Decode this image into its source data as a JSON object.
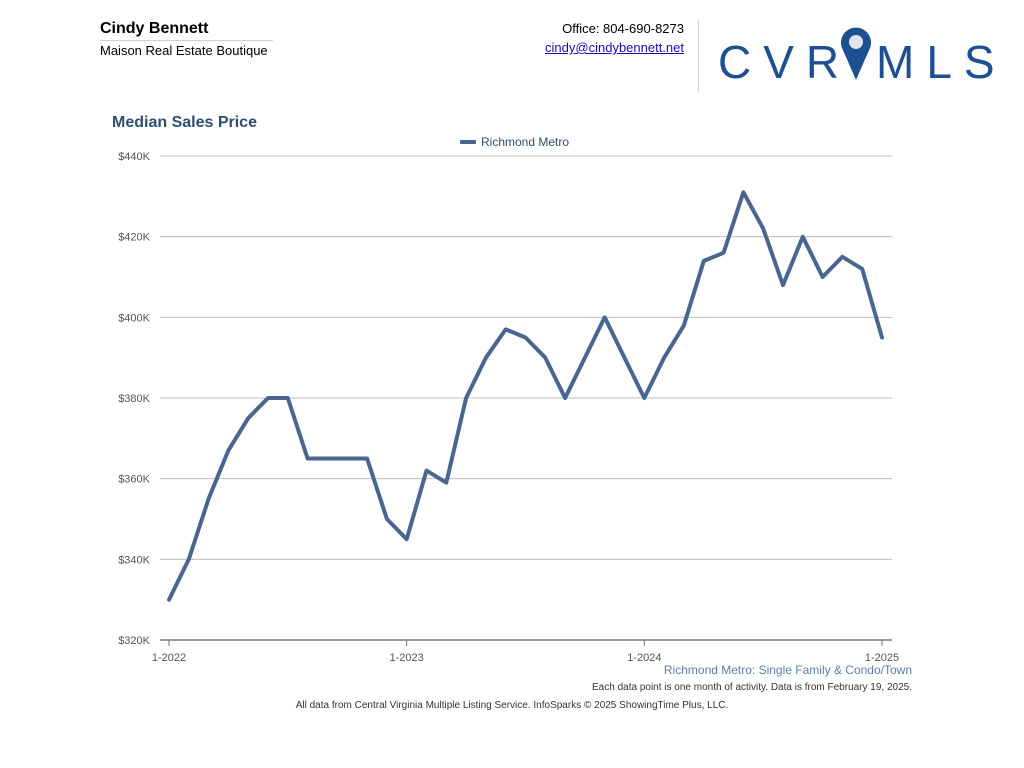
{
  "header": {
    "agent_name": "Cindy Bennett",
    "agent_company": "Maison Real Estate Boutique",
    "office_phone": "Office: 804-690-8273",
    "email": "cindy@cindybennett.net",
    "logo_text_left": "CVR",
    "logo_text_right": "MLS"
  },
  "colors": {
    "title": "#2e4e70",
    "series_line": "#4a6690",
    "grid": "#bdbdbd",
    "tick_text": "#555555",
    "logo": "#1d4f91",
    "footer_area": "#5b7fa8"
  },
  "chart_data": {
    "type": "line",
    "title": "Median Sales Price",
    "legend_position": "top-center",
    "grid": true,
    "series": [
      {
        "name": "Richmond Metro",
        "values": [
          330000,
          340000,
          355000,
          367000,
          375000,
          380000,
          380000,
          365000,
          365000,
          365000,
          365000,
          350000,
          345000,
          362000,
          359000,
          380000,
          390000,
          397000,
          395000,
          390000,
          380000,
          390000,
          400000,
          390000,
          380000,
          390000,
          398000,
          414000,
          416000,
          431000,
          422000,
          408000,
          420000,
          410000,
          415000,
          412000,
          395000
        ]
      }
    ],
    "x_start": "1-2022",
    "x_end": "1-2025",
    "x_ticks": [
      "1-2022",
      "1-2023",
      "1-2024",
      "1-2025"
    ],
    "y_ticks": [
      "$320K",
      "$340K",
      "$360K",
      "$380K",
      "$400K",
      "$420K",
      "$440K"
    ],
    "ylim": [
      320000,
      440000
    ]
  },
  "footer": {
    "area_label": "Richmond Metro: Single Family & Condo/Town",
    "data_note": "Each data point is one month of activity. Data is from February 19, 2025.",
    "source": "All data from Central Virginia Multiple Listing Service. InfoSparks © 2025 ShowingTime Plus, LLC."
  }
}
